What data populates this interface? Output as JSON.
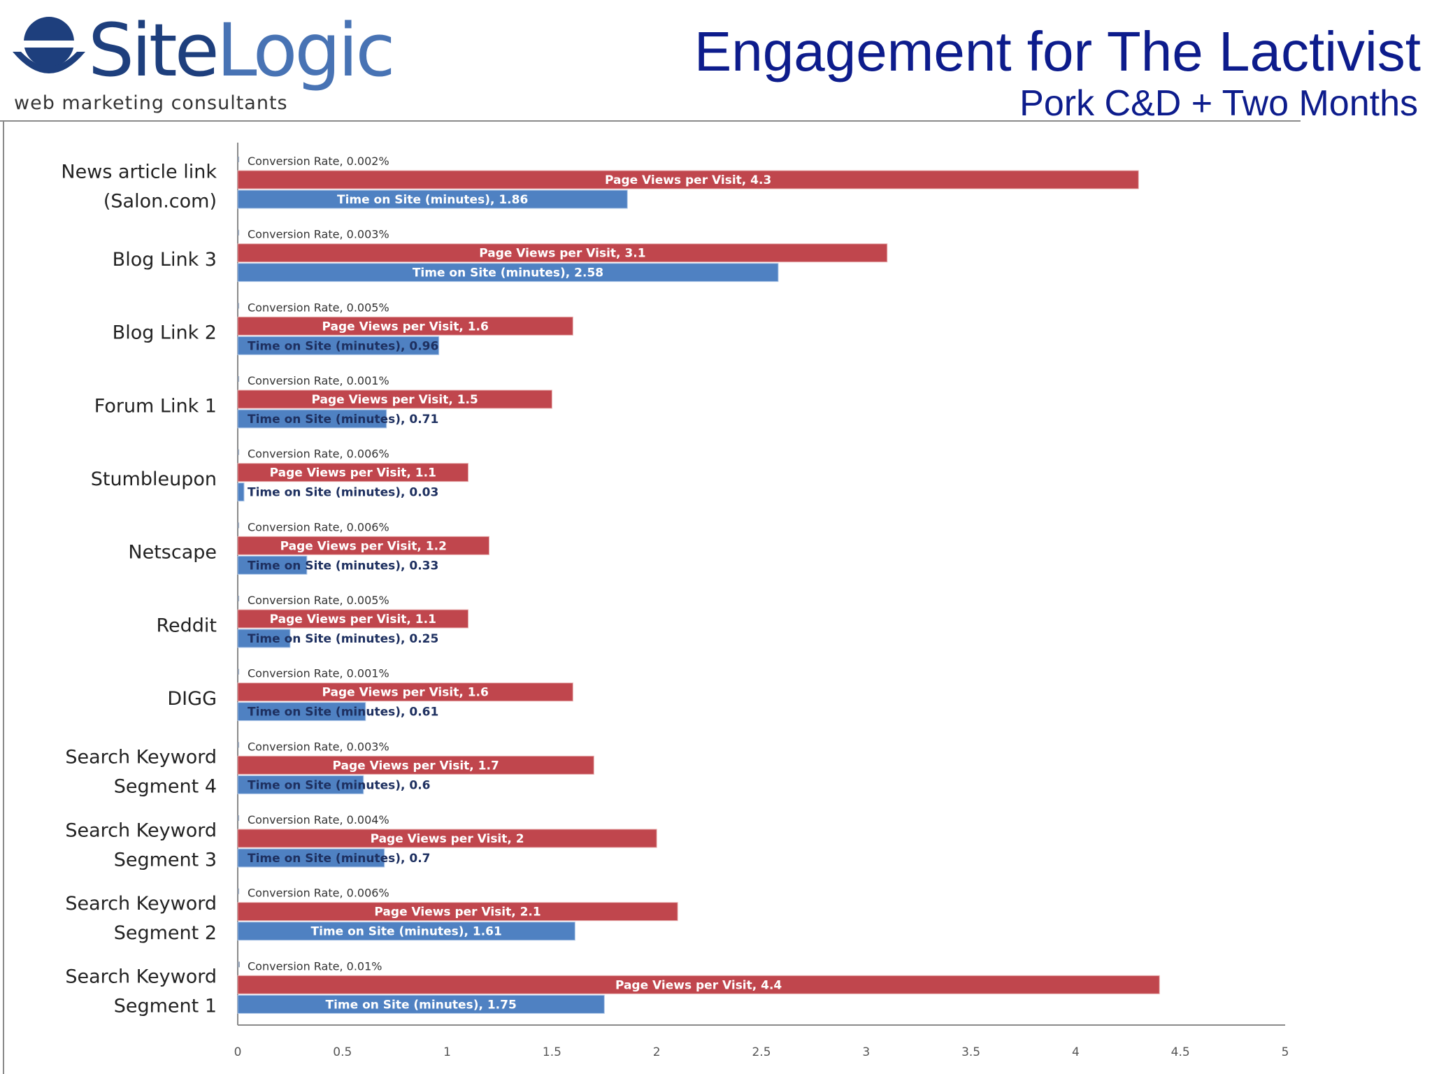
{
  "logo": {
    "name_part1": "Site",
    "name_part2": "Logic",
    "tagline": "web marketing consultants"
  },
  "header": {
    "title": "Engagement for The Lactivist",
    "subtitle": "Pork C&D + Two Months"
  },
  "colors": {
    "page_views": "#c0464d",
    "time_on_site": "#4f81c2",
    "conversion": "#9aa6b8",
    "title": "#0d1c8c"
  },
  "chart_data": {
    "type": "bar",
    "orientation": "horizontal",
    "categories": [
      [
        "News article link",
        "(Salon.com)"
      ],
      [
        "Blog Link 3"
      ],
      [
        "Blog Link 2"
      ],
      [
        "Forum Link 1"
      ],
      [
        "Stumbleupon"
      ],
      [
        "Netscape"
      ],
      [
        "Reddit"
      ],
      [
        "DIGG"
      ],
      [
        "Search Keyword",
        "Segment 4"
      ],
      [
        "Search Keyword",
        "Segment 3"
      ],
      [
        "Search Keyword",
        "Segment 2"
      ],
      [
        "Search Keyword",
        "Segment 1"
      ]
    ],
    "series": [
      {
        "name": "Conversion Rate",
        "values": [
          0.002,
          0.003,
          0.005,
          0.001,
          0.006,
          0.006,
          0.005,
          0.001,
          0.003,
          0.004,
          0.006,
          0.01
        ],
        "value_labels": [
          "0.002%",
          "0.003%",
          "0.005%",
          "0.001%",
          "0.006%",
          "0.006%",
          "0.005%",
          "0.001%",
          "0.003%",
          "0.004%",
          "0.006%",
          "0.01%"
        ]
      },
      {
        "name": "Page Views per Visit",
        "values": [
          4.3,
          3.1,
          1.6,
          1.5,
          1.1,
          1.2,
          1.1,
          1.6,
          1.7,
          2,
          2.1,
          4.4
        ],
        "value_labels": [
          "4.3",
          "3.1",
          "1.6",
          "1.5",
          "1.1",
          "1.2",
          "1.1",
          "1.6",
          "1.7",
          "2",
          "2.1",
          "4.4"
        ]
      },
      {
        "name": "Time on Site (minutes)",
        "values": [
          1.86,
          2.58,
          0.96,
          0.71,
          0.03,
          0.33,
          0.25,
          0.61,
          0.6,
          0.7,
          1.61,
          1.75
        ],
        "value_labels": [
          "1.86",
          "2.58",
          "0.96",
          "0.71",
          "0.03",
          "0.33",
          "0.25",
          "0.61",
          "0.6",
          "0.7",
          "1.61",
          "1.75"
        ]
      }
    ],
    "xlim": [
      0,
      5
    ],
    "xticks": [
      "0",
      "0.5",
      "1",
      "1.5",
      "2",
      "2.5",
      "3",
      "3.5",
      "4",
      "4.5",
      "5"
    ],
    "grid": false,
    "legend": "none (series names shown in bar data labels)"
  }
}
